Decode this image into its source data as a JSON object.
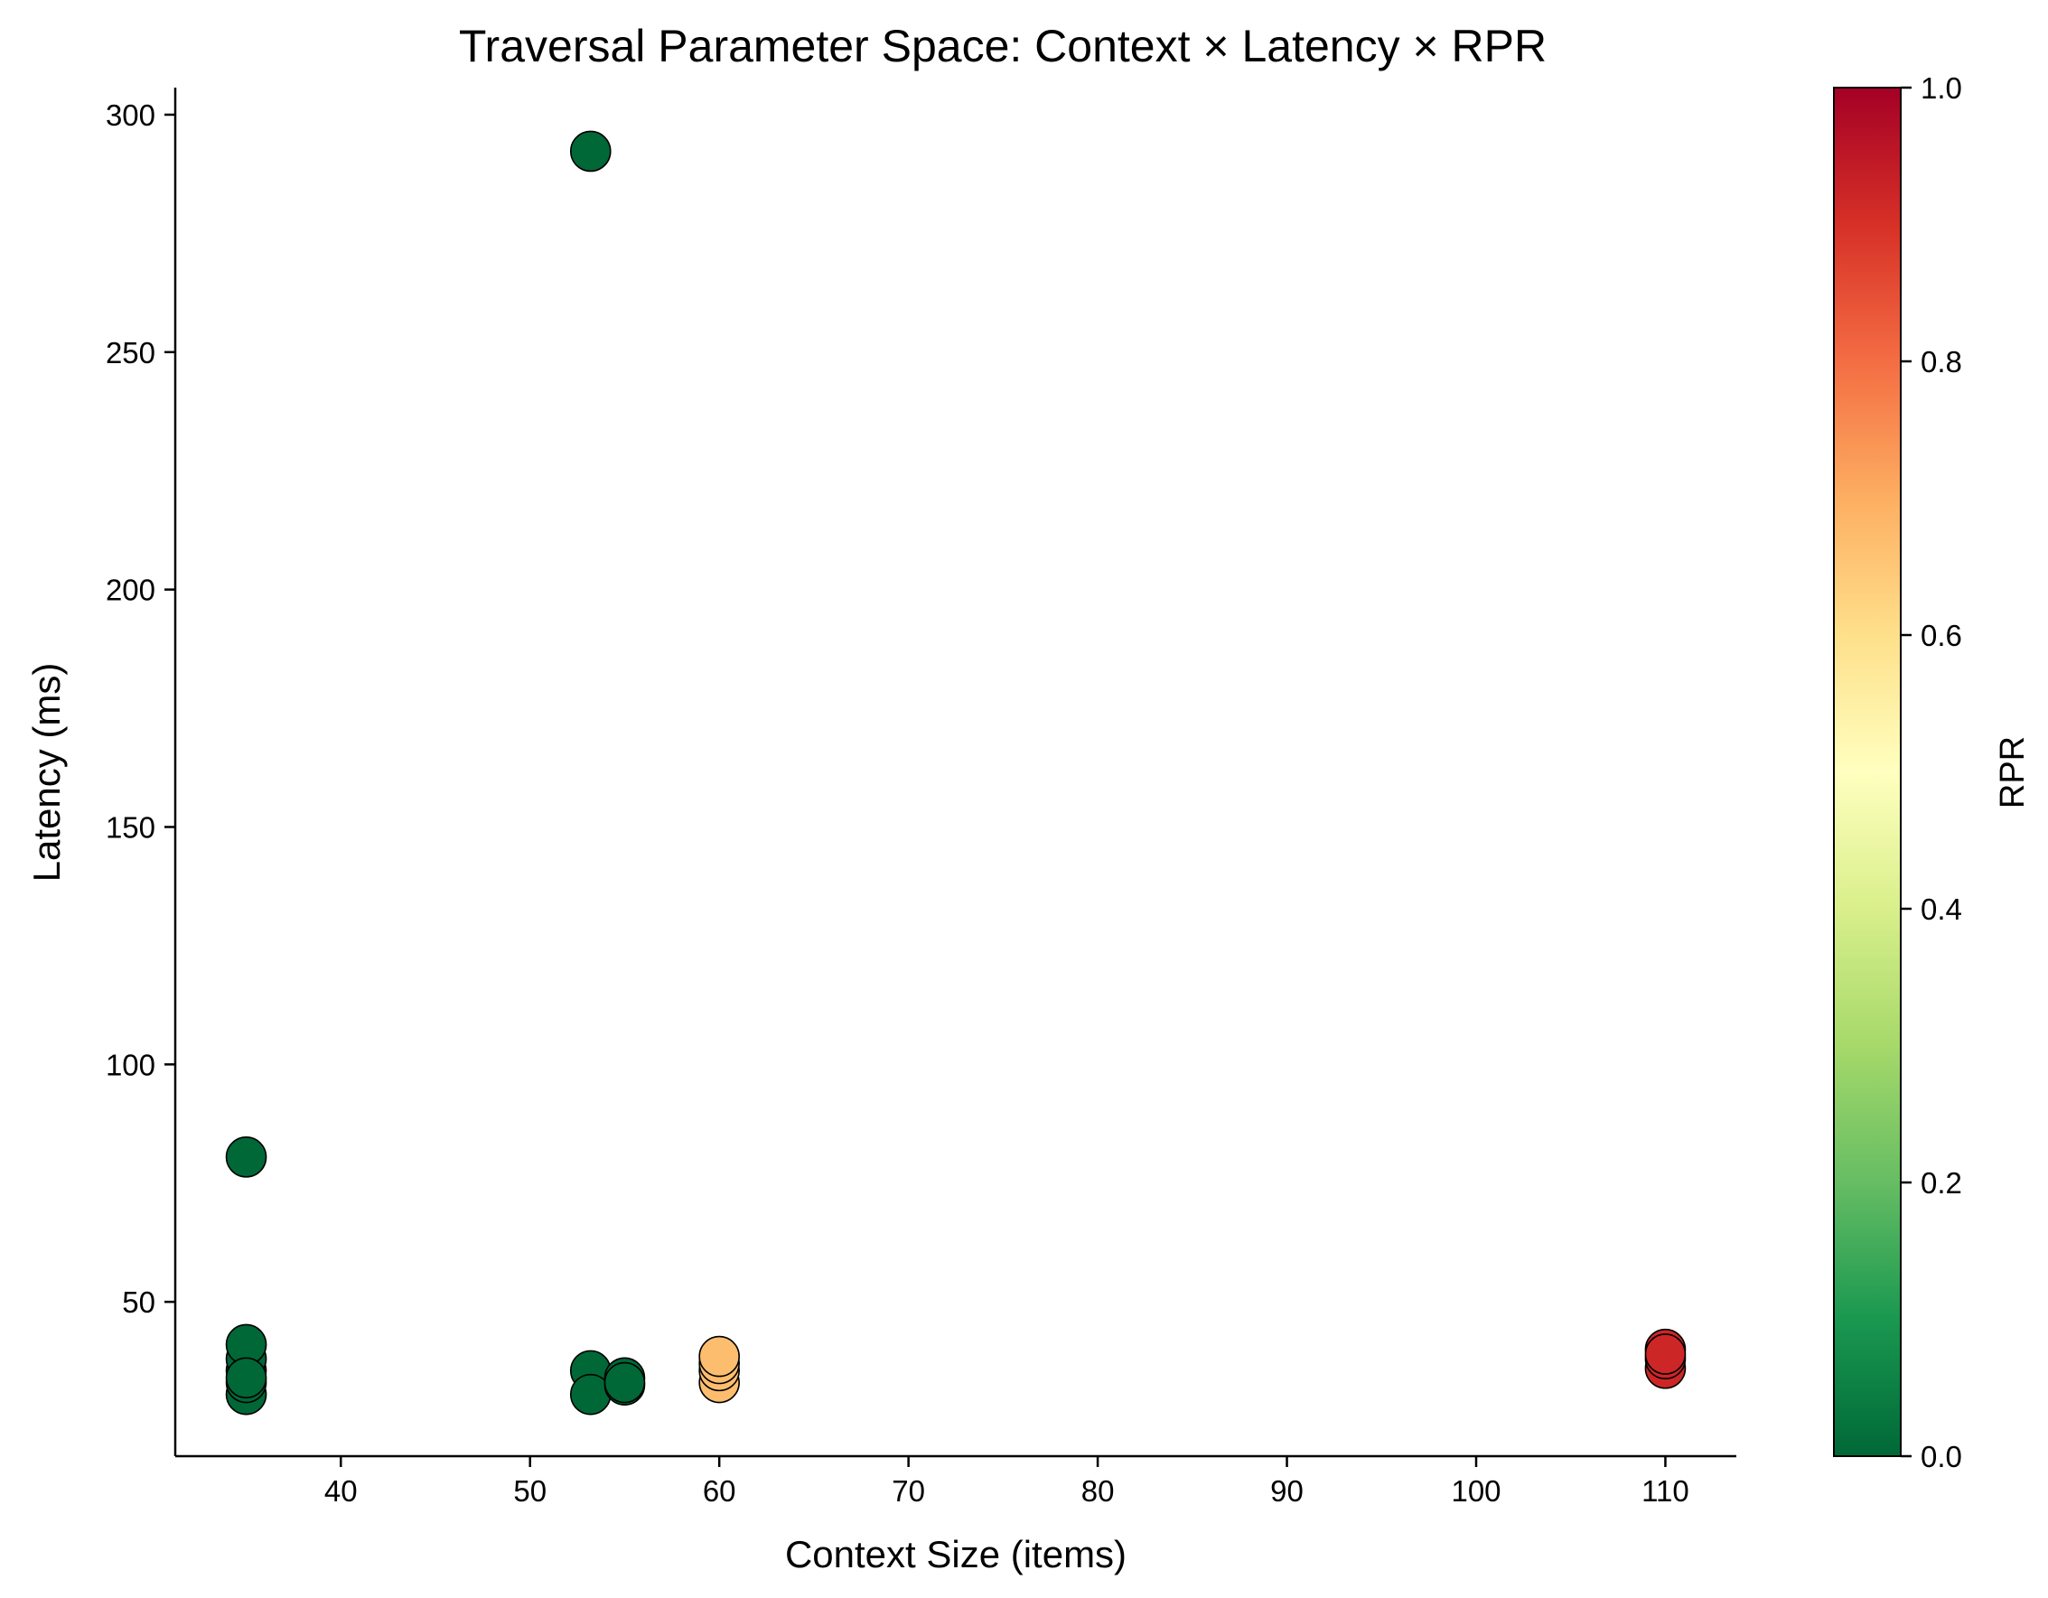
{
  "chart_data": {
    "type": "scatter",
    "title": "Traversal Parameter Space: Context × Latency × RPR",
    "xlabel": "Context Size (items)",
    "ylabel": "Latency (ms)",
    "xlim": [
      31.25,
      113.75
    ],
    "ylim": [
      17.5,
      305.7
    ],
    "xticks": [
      40,
      50,
      60,
      70,
      80,
      90,
      100,
      110
    ],
    "yticks": [
      50,
      100,
      150,
      200,
      250,
      300
    ],
    "grid": false,
    "colorbar": {
      "label": "RPR",
      "colormap": "RdYlGn_r",
      "range": [
        0.0,
        1.0
      ],
      "ticks": [
        "0.0",
        "0.2",
        "0.4",
        "0.6",
        "0.8",
        "1.0"
      ]
    },
    "points": [
      {
        "x": 35,
        "y": 30.5,
        "rpr": 0.0
      },
      {
        "x": 35,
        "y": 33.0,
        "rpr": 0.0
      },
      {
        "x": 35,
        "y": 35.5,
        "rpr": 0.0
      },
      {
        "x": 35,
        "y": 38.0,
        "rpr": 0.0
      },
      {
        "x": 35,
        "y": 41.0,
        "rpr": 0.0
      },
      {
        "x": 35,
        "y": 34.0,
        "rpr": 0.0
      },
      {
        "x": 35,
        "y": 80.5,
        "rpr": 0.0
      },
      {
        "x": 53.2,
        "y": 292.3,
        "rpr": 0.0
      },
      {
        "x": 53.2,
        "y": 35.5,
        "rpr": 0.0
      },
      {
        "x": 53.2,
        "y": 30.5,
        "rpr": 0.0
      },
      {
        "x": 55,
        "y": 34.0,
        "rpr": 0.0
      },
      {
        "x": 55,
        "y": 32.5,
        "rpr": 0.0
      },
      {
        "x": 55,
        "y": 33.0,
        "rpr": 0.0
      },
      {
        "x": 60,
        "y": 33.0,
        "rpr": 0.67
      },
      {
        "x": 60,
        "y": 35.5,
        "rpr": 0.67
      },
      {
        "x": 60,
        "y": 37.0,
        "rpr": 0.67
      },
      {
        "x": 60,
        "y": 38.5,
        "rpr": 0.67
      },
      {
        "x": 110,
        "y": 36.0,
        "rpr": 0.92
      },
      {
        "x": 110,
        "y": 38.0,
        "rpr": 0.92
      },
      {
        "x": 110,
        "y": 40.0,
        "rpr": 0.92
      },
      {
        "x": 110,
        "y": 39.0,
        "rpr": 0.92
      }
    ]
  }
}
